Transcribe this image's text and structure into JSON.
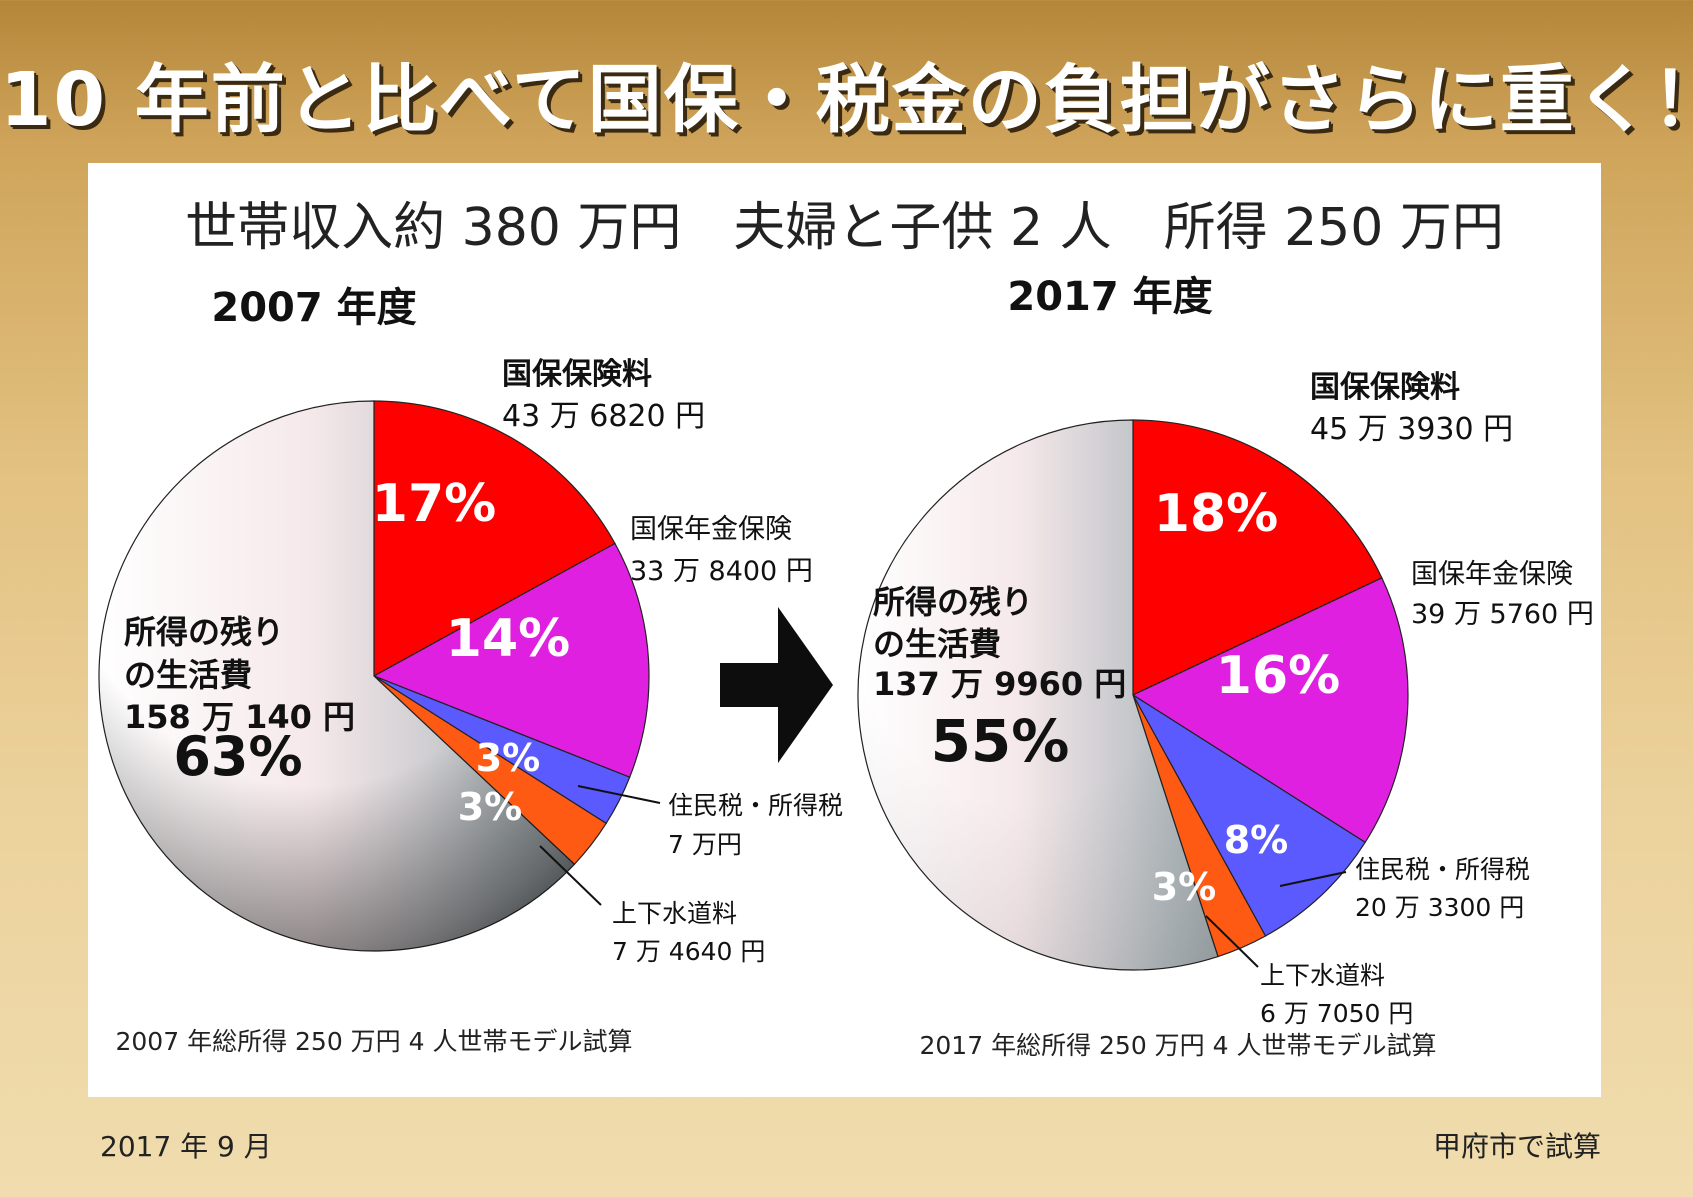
{
  "headline": "10 年前と比べて国保・税金の負担がさらに重く！",
  "subtitle": "世帯収入約 380 万円　夫婦と子供 2 人　所得 250 万円",
  "date": "2017 年 9 月",
  "credit": "甲府市で試算",
  "colors": {
    "hoken": "#ff0000",
    "nenkin": "#e020e0",
    "zei": "#5a5aff",
    "suido": "#ff5a14",
    "nokori": "#b0b8bc"
  },
  "chart_data": [
    {
      "type": "pie",
      "title": "2007 年度",
      "footnote": "2007 年総所得 250 万円 4 人世帯モデル試算",
      "slices": [
        {
          "name": "国保保険料",
          "value_text": "43 万 6820 円",
          "value": 436820,
          "pct": 17,
          "pct_label": "17%"
        },
        {
          "name": "国保年金保険",
          "value_text": "33 万 8400 円",
          "value": 338400,
          "pct": 14,
          "pct_label": "14%"
        },
        {
          "name": "住民税・所得税",
          "value_text": "7 万円",
          "value": 70000,
          "pct": 3,
          "pct_label": "3%"
        },
        {
          "name": "上下水道料",
          "value_text": "7 万 4640 円",
          "value": 74640,
          "pct": 3,
          "pct_label": "3%"
        },
        {
          "name_lines": [
            "所得の残り",
            "の生活費"
          ],
          "value_text": "158 万 140 円",
          "value": 1580140,
          "pct": 63,
          "pct_label": "63%"
        }
      ]
    },
    {
      "type": "pie",
      "title": "2017 年度",
      "footnote": "2017 年総所得 250 万円 4 人世帯モデル試算",
      "slices": [
        {
          "name": "国保保険料",
          "value_text": "45 万 3930 円",
          "value": 453930,
          "pct": 18,
          "pct_label": "18%"
        },
        {
          "name": "国保年金保険",
          "value_text": "39 万 5760 円",
          "value": 395760,
          "pct": 16,
          "pct_label": "16%"
        },
        {
          "name": "住民税・所得税",
          "value_text": "20 万 3300 円",
          "value": 203300,
          "pct": 8,
          "pct_label": "8%"
        },
        {
          "name": "上下水道料",
          "value_text": "6 万 7050 円",
          "value": 67050,
          "pct": 3,
          "pct_label": "3%"
        },
        {
          "name_lines": [
            "所得の残り",
            "の生活費"
          ],
          "value_text": "137 万 9960 円",
          "value": 1379960,
          "pct": 55,
          "pct_label": "55%"
        }
      ]
    }
  ]
}
